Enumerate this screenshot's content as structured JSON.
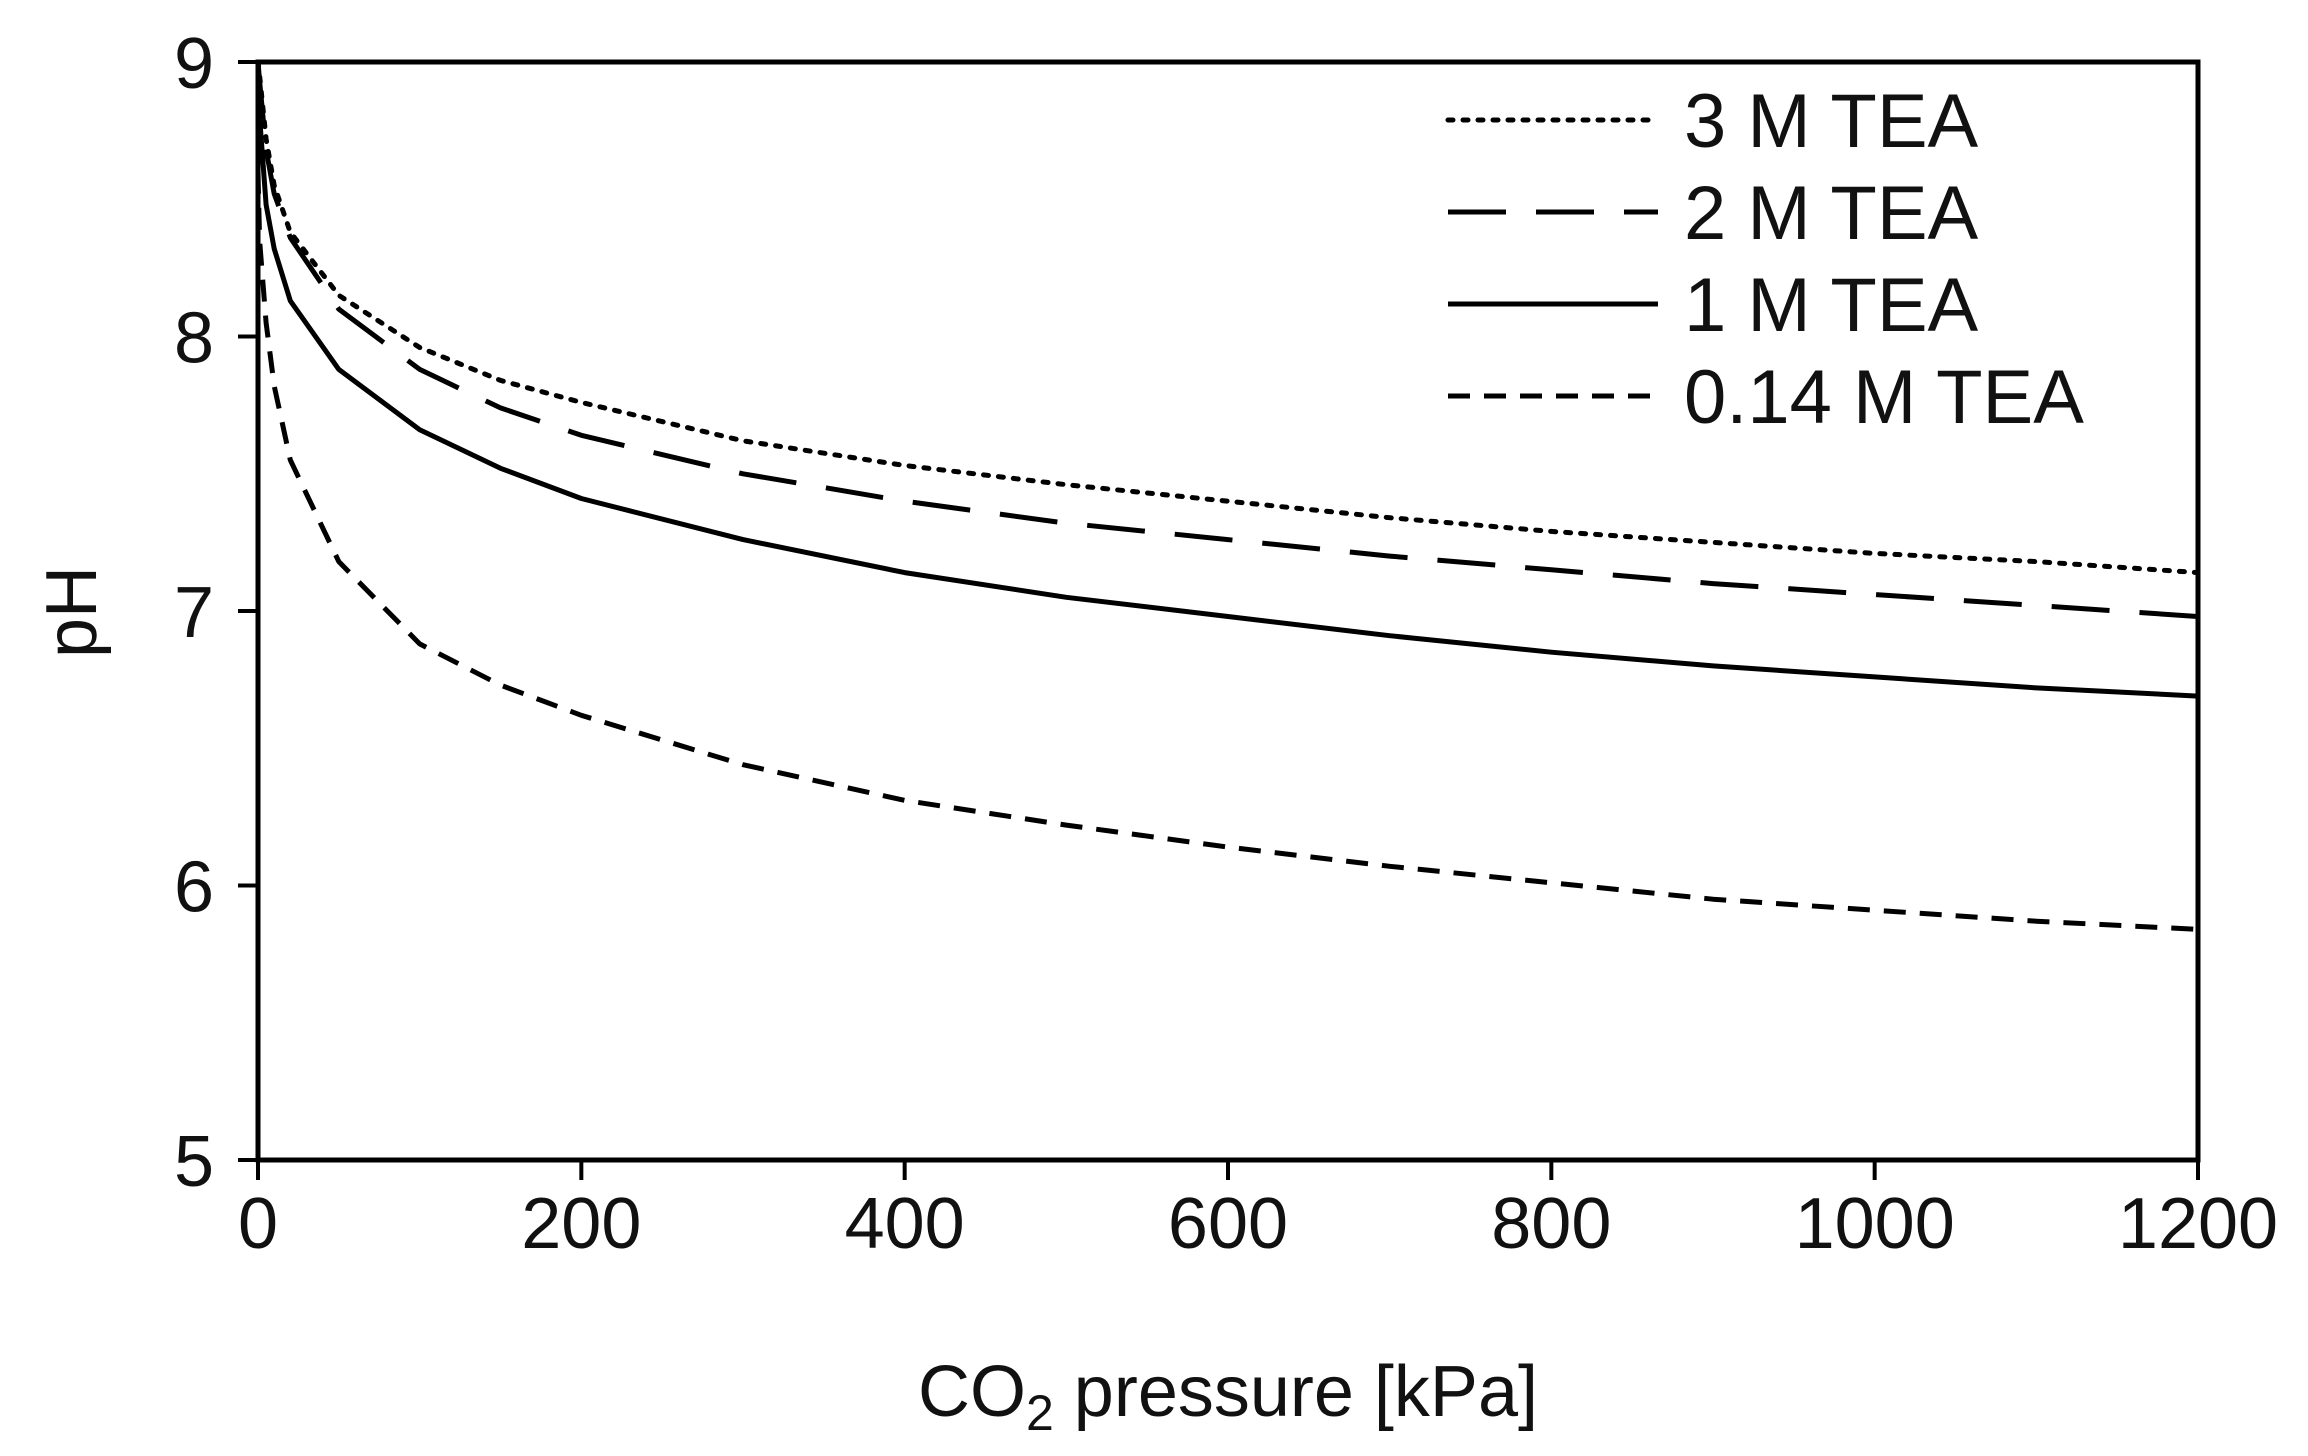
{
  "chart_data": {
    "type": "line",
    "title": "",
    "xlabel": {
      "prefix": "CO",
      "subscript": "2",
      "suffix": " pressure [kPa]"
    },
    "ylabel": "pH",
    "xlim": [
      0,
      1200
    ],
    "ylim": [
      5,
      9
    ],
    "xticks": [
      0,
      200,
      400,
      600,
      800,
      1000,
      1200
    ],
    "yticks": [
      5,
      6,
      7,
      8,
      9
    ],
    "x_tick_labels": [
      "0",
      "200",
      "400",
      "600",
      "800",
      "1000",
      "1200"
    ],
    "y_tick_labels": [
      "5",
      "6",
      "7",
      "8",
      "9"
    ],
    "grid": false,
    "legend_position": "top-right",
    "x": [
      0,
      1,
      5,
      10,
      20,
      50,
      100,
      150,
      200,
      300,
      400,
      500,
      600,
      700,
      800,
      900,
      1000,
      1100,
      1200
    ],
    "series": [
      {
        "name": "3 M TEA",
        "style": "dotted",
        "values": [
          9.0,
          8.95,
          8.72,
          8.55,
          8.38,
          8.15,
          7.96,
          7.84,
          7.76,
          7.62,
          7.53,
          7.46,
          7.4,
          7.34,
          7.29,
          7.25,
          7.21,
          7.18,
          7.14
        ]
      },
      {
        "name": "2 M TEA",
        "style": "long-dash",
        "values": [
          9.0,
          8.93,
          8.68,
          8.52,
          8.36,
          8.1,
          7.88,
          7.74,
          7.64,
          7.5,
          7.4,
          7.32,
          7.26,
          7.2,
          7.15,
          7.1,
          7.06,
          7.02,
          6.98
        ]
      },
      {
        "name": "1 M TEA",
        "style": "solid",
        "values": [
          9.0,
          8.8,
          8.48,
          8.32,
          8.13,
          7.88,
          7.66,
          7.52,
          7.41,
          7.26,
          7.14,
          7.05,
          6.98,
          6.91,
          6.85,
          6.8,
          6.76,
          6.72,
          6.69
        ]
      },
      {
        "name": "0.14 M TEA",
        "style": "short-dash",
        "values": [
          8.6,
          8.35,
          8.05,
          7.82,
          7.55,
          7.18,
          6.88,
          6.73,
          6.62,
          6.44,
          6.31,
          6.22,
          6.14,
          6.07,
          6.01,
          5.95,
          5.91,
          5.87,
          5.84
        ]
      }
    ]
  }
}
